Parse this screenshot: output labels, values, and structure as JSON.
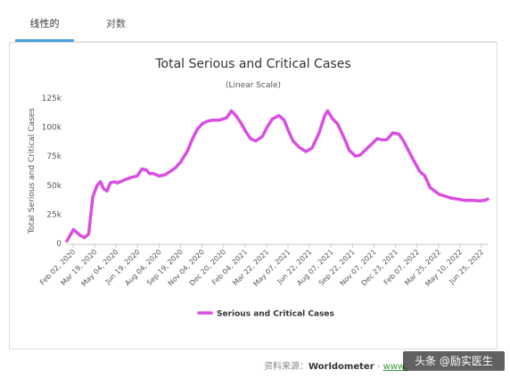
{
  "tabs": [
    {
      "label": "线性的",
      "active": true
    },
    {
      "label": "对数",
      "active": false
    }
  ],
  "source": {
    "label": "资料来源：",
    "name": "Worldometer",
    "separator": " - ",
    "link_text": "www."
  },
  "watermark": "头条 @励实医生",
  "colors": {
    "series": "#d94fe0",
    "tab_accent": "#4aa3df"
  },
  "chart_data": {
    "type": "line",
    "title": "Total Serious and Critical Cases",
    "subtitle": "(Linear Scale)",
    "ylabel": "Total Serious and Critical Cases",
    "xlabel": "",
    "ylim": [
      0,
      125000
    ],
    "yticks": [
      0,
      25000,
      50000,
      75000,
      100000,
      125000
    ],
    "ytick_labels": [
      "0",
      "25k",
      "50k",
      "75k",
      "100k",
      "125k"
    ],
    "xtick_labels": [
      "Feb 02, 2020",
      "Mar 19, 2020",
      "May 04, 2020",
      "Jun 19, 2020",
      "Aug 04, 2020",
      "Sep 19, 2020",
      "Nov 04, 2020",
      "Dec 20, 2020",
      "Feb 04, 2021",
      "Mar 22, 2021",
      "May 07, 2021",
      "Jun 22, 2021",
      "Aug 07, 2021",
      "Sep 22, 2021",
      "Nov 07, 2021",
      "Dec 23, 2021",
      "Feb 07, 2022",
      "Mar 25, 2022",
      "May 10, 2022",
      "Jun 25, 2022"
    ],
    "grid": false,
    "legend": "bottom",
    "series": [
      {
        "name": "Serious and Critical Cases",
        "x": [
          "2020-02-02",
          "2020-02-16",
          "2020-03-01",
          "2020-03-10",
          "2020-03-19",
          "2020-03-28",
          "2020-04-06",
          "2020-04-13",
          "2020-04-20",
          "2020-04-27",
          "2020-05-04",
          "2020-05-12",
          "2020-05-19",
          "2020-05-25",
          "2020-06-05",
          "2020-06-19",
          "2020-06-30",
          "2020-07-10",
          "2020-07-20",
          "2020-07-26",
          "2020-08-04",
          "2020-08-15",
          "2020-08-28",
          "2020-09-08",
          "2020-09-19",
          "2020-09-30",
          "2020-10-15",
          "2020-10-25",
          "2020-11-04",
          "2020-11-15",
          "2020-11-25",
          "2020-12-05",
          "2020-12-20",
          "2021-01-05",
          "2021-01-15",
          "2021-01-25",
          "2021-02-04",
          "2021-02-15",
          "2021-02-25",
          "2021-03-08",
          "2021-03-22",
          "2021-04-01",
          "2021-04-12",
          "2021-04-26",
          "2021-05-07",
          "2021-05-16",
          "2021-05-26",
          "2021-06-07",
          "2021-06-22",
          "2021-07-05",
          "2021-07-20",
          "2021-08-01",
          "2021-08-07",
          "2021-08-18",
          "2021-08-28",
          "2021-09-05",
          "2021-09-15",
          "2021-09-22",
          "2021-10-05",
          "2021-10-15",
          "2021-10-25",
          "2021-11-07",
          "2021-11-20",
          "2021-12-01",
          "2021-12-10",
          "2021-12-23",
          "2022-01-05",
          "2022-01-15",
          "2022-01-25",
          "2022-02-07",
          "2022-02-18",
          "2022-03-01",
          "2022-03-12",
          "2022-03-25",
          "2022-04-01",
          "2022-04-10",
          "2022-04-25",
          "2022-05-10",
          "2022-05-25",
          "2022-06-10",
          "2022-06-25",
          "2022-07-05",
          "2022-07-12"
        ],
        "values": [
          2000,
          12000,
          7000,
          5000,
          8000,
          40000,
          50000,
          53000,
          47000,
          45000,
          52000,
          53000,
          52000,
          53000,
          55000,
          57000,
          58000,
          64000,
          63000,
          60000,
          60000,
          58000,
          59000,
          62000,
          65000,
          70000,
          80000,
          90000,
          98000,
          103000,
          105000,
          106000,
          106000,
          108000,
          114000,
          110000,
          104000,
          96000,
          90000,
          88000,
          92000,
          100000,
          107000,
          110000,
          106000,
          97000,
          88000,
          83000,
          79000,
          82000,
          95000,
          110000,
          114000,
          107000,
          103000,
          96000,
          87000,
          80000,
          75000,
          76000,
          80000,
          85000,
          90000,
          89000,
          89000,
          95000,
          94000,
          88000,
          80000,
          70000,
          62000,
          58000,
          48000,
          44000,
          42000,
          41000,
          39000,
          38000,
          37000,
          37000,
          36500,
          37000,
          38000
        ]
      }
    ]
  }
}
